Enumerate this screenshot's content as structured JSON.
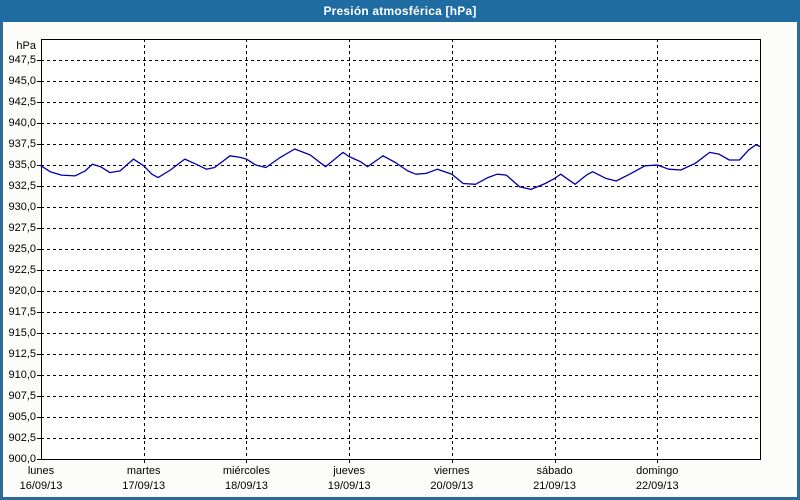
{
  "window": {
    "title": "Presión atmosférica [hPa]",
    "titlebar_color": "#1f6ca2",
    "border_color": "#2d6b96",
    "background_color": "#fcfdfa",
    "plot_background_color": "#ffffff"
  },
  "chart_data": {
    "type": "line",
    "title": "Presión atmosférica [hPa]",
    "ylabel": "hPa",
    "xlabel": "",
    "ylim": [
      900,
      950
    ],
    "xlim_days": [
      0,
      7
    ],
    "grid": "dashed",
    "legend": "none",
    "axis_color": "#000000",
    "text_color": "#000000",
    "ytick_values": [
      947.5,
      945.0,
      942.5,
      940.0,
      937.5,
      935.0,
      932.5,
      930.0,
      927.5,
      925.0,
      922.5,
      920.0,
      917.5,
      915.0,
      912.5,
      910.0,
      907.5,
      905.0,
      902.5,
      900.0
    ],
    "ytick_labels": [
      "947,5",
      "945,0",
      "942,5",
      "940,0",
      "937,5",
      "935,0",
      "932,5",
      "930,0",
      "927,5",
      "925,0",
      "922,5",
      "920,0",
      "917,5",
      "915,0",
      "912,5",
      "910,0",
      "907,5",
      "905,0",
      "902,5",
      "900,0"
    ],
    "categories": [
      {
        "day": "lunes",
        "date": "16/09/13"
      },
      {
        "day": "martes",
        "date": "17/09/13"
      },
      {
        "day": "miércoles",
        "date": "18/09/13"
      },
      {
        "day": "jueves",
        "date": "19/09/13"
      },
      {
        "day": "viernes",
        "date": "20/09/13"
      },
      {
        "day": "sábado",
        "date": "21/09/13"
      },
      {
        "day": "domingo",
        "date": "22/09/13"
      }
    ],
    "series": [
      {
        "name": "Presión atmosférica",
        "color": "#0000a8",
        "x_days": [
          0,
          0.09,
          0.2,
          0.33,
          0.43,
          0.5,
          0.58,
          0.67,
          0.77,
          0.9,
          1.0,
          1.08,
          1.14,
          1.26,
          1.4,
          1.51,
          1.61,
          1.69,
          1.84,
          1.94,
          2.0,
          2.09,
          2.19,
          2.33,
          2.47,
          2.62,
          2.77,
          2.85,
          2.94,
          3.0,
          3.11,
          3.18,
          3.33,
          3.45,
          3.57,
          3.65,
          3.75,
          3.86,
          4.0,
          4.11,
          4.23,
          4.35,
          4.44,
          4.53,
          4.66,
          4.77,
          4.91,
          5.0,
          5.06,
          5.2,
          5.31,
          5.37,
          5.5,
          5.6,
          5.73,
          5.88,
          6.0,
          6.11,
          6.23,
          6.37,
          6.51,
          6.6,
          6.7,
          6.8,
          6.89,
          6.96,
          7.0
        ],
        "values": [
          934.9,
          934.2,
          933.8,
          933.7,
          934.3,
          935.1,
          934.8,
          934.1,
          934.3,
          935.7,
          934.9,
          933.9,
          933.5,
          934.4,
          935.7,
          935.1,
          934.5,
          934.7,
          936.1,
          935.9,
          935.7,
          935.0,
          934.7,
          935.9,
          936.9,
          936.2,
          934.8,
          935.6,
          936.5,
          936.0,
          935.4,
          934.8,
          936.1,
          935.3,
          934.3,
          933.9,
          934.0,
          934.5,
          933.9,
          932.8,
          932.7,
          933.5,
          933.9,
          933.8,
          932.4,
          932.1,
          932.8,
          933.4,
          933.9,
          932.7,
          933.8,
          934.2,
          933.4,
          933.1,
          933.9,
          934.9,
          935.0,
          934.5,
          934.4,
          935.2,
          936.5,
          936.3,
          935.6,
          935.6,
          936.8,
          937.4,
          937.2
        ]
      }
    ]
  }
}
